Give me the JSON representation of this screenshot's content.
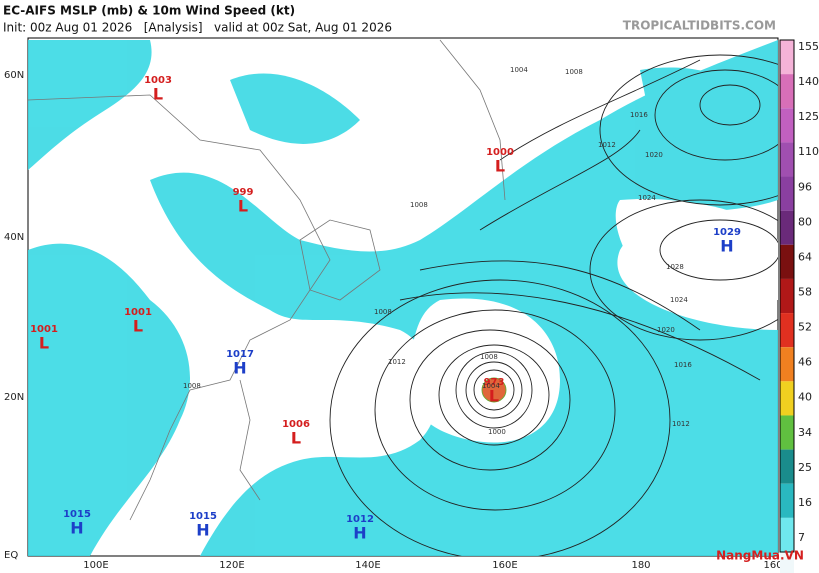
{
  "header": {
    "title": "EC-AIFS MSLP (mb) & 10m Wind Speed (kt)",
    "init": "Init: 00z Aug 01 2026   [Analysis]   valid at 00z Sat, Aug 01 2026",
    "source": "TROPICALTIDBITS.COM"
  },
  "lat_labels": [
    "60N",
    "40N",
    "20N",
    "EQ"
  ],
  "lon_labels": [
    "100E",
    "120E",
    "140E",
    "160E",
    "180",
    "160W"
  ],
  "colorbar": [
    "155",
    "140",
    "125",
    "110",
    "96",
    "80",
    "64",
    "58",
    "52",
    "46",
    "40",
    "34",
    "25",
    "16",
    "7"
  ],
  "centers": [
    {
      "value": "1003",
      "symbol": "L"
    },
    {
      "value": "999",
      "symbol": "L"
    },
    {
      "value": "1000",
      "symbol": "L"
    },
    {
      "value": "1029",
      "symbol": "H"
    },
    {
      "value": "1001",
      "symbol": "L"
    },
    {
      "value": "1001",
      "symbol": "L"
    },
    {
      "value": "1017",
      "symbol": "H"
    },
    {
      "value": "973",
      "symbol": "L"
    },
    {
      "value": "1006",
      "symbol": "L"
    },
    {
      "value": "1015",
      "symbol": "H"
    },
    {
      "value": "1015",
      "symbol": "H"
    },
    {
      "value": "1012",
      "symbol": "H"
    }
  ],
  "isobar_labels": [
    "1008",
    "1004",
    "1008",
    "1012",
    "1016",
    "1020",
    "1024",
    "1028",
    "1024",
    "1020",
    "1016",
    "1012",
    "1008",
    "1004",
    "1000",
    "1008",
    "1012",
    "1008"
  ],
  "watermark": "NangMua.VN"
}
